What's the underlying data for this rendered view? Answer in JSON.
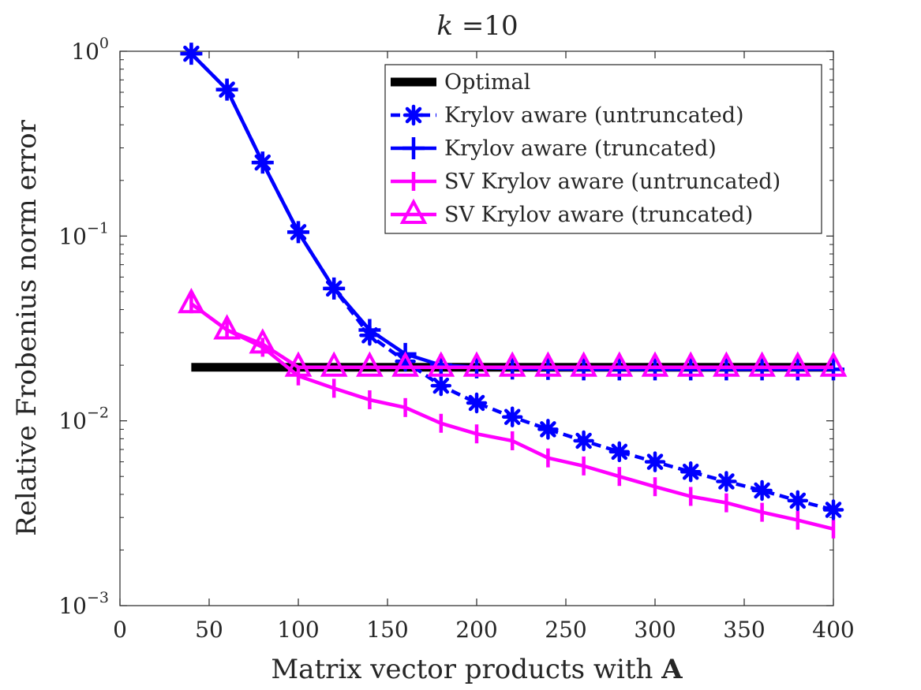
{
  "chart_data": {
    "type": "line",
    "title": {
      "variable": "k",
      "rest": " =10"
    },
    "xlabel": {
      "text": "Matrix vector products with ",
      "bold": "A"
    },
    "ylabel": "Relative Frobenius norm error",
    "xlim": [
      0,
      400
    ],
    "ylim": [
      0.001,
      1
    ],
    "yscale": "log",
    "xticks": [
      0,
      50,
      100,
      150,
      200,
      250,
      300,
      350,
      400
    ],
    "xtick_labels": [
      "0",
      "50",
      "100",
      "150",
      "200",
      "250",
      "300",
      "350",
      "400"
    ],
    "yticks": [
      0.001,
      0.01,
      0.1,
      1
    ],
    "ytick_labels": [
      {
        "base": "10",
        "exp": "−3"
      },
      {
        "base": "10",
        "exp": "−2"
      },
      {
        "base": "10",
        "exp": "−1"
      },
      {
        "base": "10",
        "exp": "0"
      }
    ],
    "legend_position": "top-right",
    "x": [
      40,
      60,
      80,
      100,
      120,
      140,
      160,
      180,
      200,
      220,
      240,
      260,
      280,
      300,
      320,
      340,
      360,
      380,
      400
    ],
    "series": [
      {
        "name": "Optimal",
        "color": "#000000",
        "marker": "none",
        "line": "solid",
        "values": [
          0.0195,
          0.0195,
          0.0195,
          0.0195,
          0.0195,
          0.0195,
          0.0195,
          0.0195,
          0.0195,
          0.0195,
          0.0195,
          0.0195,
          0.0195,
          0.0195,
          0.0195,
          0.0195,
          0.0195,
          0.0195,
          0.0195
        ]
      },
      {
        "name": "Krylov aware (untruncated)",
        "color": "#0000ff",
        "marker": "asterisk",
        "line": "dashed",
        "values": [
          0.97,
          0.62,
          0.25,
          0.105,
          0.052,
          0.029,
          0.021,
          0.0155,
          0.0125,
          0.0105,
          0.009,
          0.0078,
          0.0068,
          0.006,
          0.0053,
          0.0047,
          0.0042,
          0.0037,
          0.0033
        ]
      },
      {
        "name": "Krylov aware (truncated)",
        "color": "#0000ff",
        "marker": "plus",
        "line": "solid",
        "values": [
          0.97,
          0.62,
          0.25,
          0.105,
          0.052,
          0.031,
          0.023,
          0.02,
          0.0195,
          0.0192,
          0.0191,
          0.019,
          0.019,
          0.019,
          0.019,
          0.019,
          0.019,
          0.019,
          0.019
        ]
      },
      {
        "name": "SV Krylov aware (untruncated)",
        "color": "#ff00ff",
        "marker": "vbar",
        "line": "solid",
        "values": [
          0.043,
          0.031,
          0.025,
          0.0175,
          0.015,
          0.013,
          0.0118,
          0.0097,
          0.0085,
          0.0078,
          0.0063,
          0.0057,
          0.005,
          0.0044,
          0.0039,
          0.0036,
          0.0032,
          0.0029,
          0.0026
        ]
      },
      {
        "name": "SV Krylov aware (truncated)",
        "color": "#ff00ff",
        "marker": "triangle",
        "line": "solid",
        "values": [
          0.043,
          0.031,
          0.026,
          0.0195,
          0.0195,
          0.0195,
          0.0195,
          0.0195,
          0.0195,
          0.0195,
          0.0195,
          0.0195,
          0.0195,
          0.0195,
          0.0195,
          0.0195,
          0.0195,
          0.0195,
          0.0195
        ]
      }
    ]
  }
}
